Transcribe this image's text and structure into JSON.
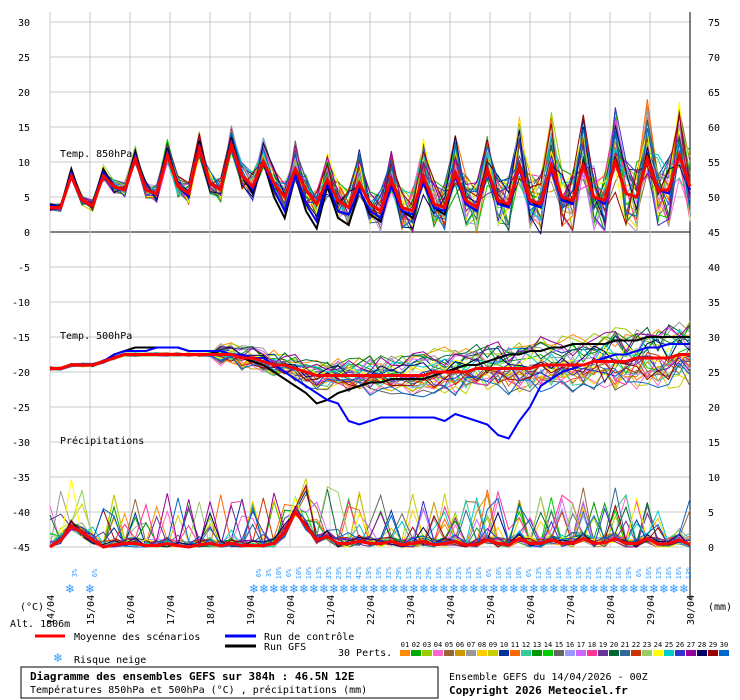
{
  "chart_data": {
    "type": "line",
    "title": "Diagramme des ensembles GEFS sur 384h : 46.5N 12E",
    "subtitle": "Températures 850hPa et 500hPa (°C) , précipitations (mm)",
    "run_label": "Ensemble GEFS du 14/04/2026 - 00Z",
    "copyright": "Copyright 2026 Meteociel.fr",
    "altitude": "Alt. 1806m",
    "left_axis": {
      "unit": "(°C)",
      "ticks": [
        30,
        25,
        20,
        15,
        10,
        5,
        0,
        -5,
        -10,
        -15,
        -20,
        -25,
        -30,
        -35,
        -40,
        -45
      ]
    },
    "right_axis": {
      "unit": "(mm)",
      "ticks_temp500": [
        75,
        70,
        65,
        60,
        55,
        50,
        45,
        40,
        35,
        30,
        25,
        20,
        15,
        10,
        5,
        0
      ]
    },
    "x_dates": [
      "14/04",
      "15/04",
      "16/04",
      "17/04",
      "18/04",
      "19/04",
      "20/04",
      "21/04",
      "22/04",
      "23/04",
      "24/04",
      "25/04",
      "26/04",
      "27/04",
      "28/04",
      "29/04",
      "30/04"
    ],
    "panel_labels": {
      "t850": "Temp. 850hPa",
      "t500": "Temp. 500hPa",
      "precip": "Précipitations"
    },
    "t850_mean": [
      3.5,
      3.5,
      8,
      4.5,
      3.8,
      8,
      6.5,
      6,
      10.5,
      6,
      5.5,
      11,
      6.5,
      5.5,
      12,
      7,
      6,
      12.5,
      8,
      6.5,
      10,
      7,
      5,
      9,
      6,
      4,
      7.5,
      4.5,
      3.5,
      7,
      4,
      3,
      7.5,
      3.5,
      3,
      8,
      4,
      3.5,
      8.5,
      4.5,
      3.5,
      9,
      4.5,
      4,
      9.5,
      4.5,
      4,
      9.5,
      5,
      4.5,
      9.5,
      5,
      4.5,
      10,
      5.5,
      5,
      10.5,
      6,
      6,
      11,
      6.5
    ],
    "t850_control": [
      3.8,
      3.5,
      8.5,
      4.5,
      4,
      8.5,
      6.5,
      6,
      11,
      6,
      5.5,
      11.5,
      6.5,
      5,
      12.5,
      7,
      6,
      13,
      8,
      6,
      10,
      6,
      3,
      8,
      4,
      1.5,
      7,
      3,
      2.5,
      6,
      3,
      2,
      6.5,
      3,
      2.5,
      7,
      3.5,
      3,
      8,
      4,
      3,
      8.5,
      4,
      3.5,
      9,
      4,
      3.5,
      9,
      4.5,
      4,
      9.5,
      5,
      4,
      10,
      5.5,
      5,
      10.5,
      6,
      5.5,
      11,
      6
    ],
    "t850_gfs": [
      4,
      3.5,
      9,
      4.5,
      4,
      9,
      6.5,
      6,
      11.5,
      6,
      5.5,
      12,
      6.5,
      5,
      13,
      7,
      6,
      13.5,
      8,
      5.5,
      10,
      5,
      2,
      8,
      3,
      0.5,
      6.5,
      2,
      1,
      6,
      2.5,
      1.5,
      7,
      3,
      2,
      7.5,
      3.5,
      2.5,
      8,
      4,
      3,
      9,
      4.5,
      3.5,
      9.5,
      4.5,
      3.5,
      9.5,
      5,
      4,
      10,
      5,
      4.5,
      10.5,
      5.5,
      5,
      11,
      6,
      5.5,
      11,
      6
    ],
    "t500_mean": [
      -19.5,
      -19.5,
      -19,
      -19,
      -19,
      -18.5,
      -18,
      -17.5,
      -17.5,
      -17.5,
      -17.5,
      -17.5,
      -17.5,
      -17.5,
      -17.5,
      -17.5,
      -17.5,
      -17.5,
      -18,
      -18,
      -18.5,
      -19,
      -19,
      -19.5,
      -20,
      -20.5,
      -20.5,
      -20.5,
      -20.5,
      -20.5,
      -20.5,
      -20.5,
      -20.5,
      -20.5,
      -20.5,
      -20.5,
      -20,
      -20,
      -20,
      -20,
      -19.5,
      -19.5,
      -19.5,
      -19.5,
      -19.5,
      -19.5,
      -19,
      -19,
      -19,
      -19,
      -19,
      -18.5,
      -18.5,
      -18.5,
      -18.5,
      -18,
      -18,
      -18,
      -18,
      -17.5,
      -17.5
    ],
    "t500_control": [
      -19.5,
      -19.5,
      -19,
      -19,
      -19,
      -18.5,
      -17.5,
      -17,
      -17,
      -17,
      -16.5,
      -16.5,
      -16.5,
      -17,
      -17,
      -17,
      -17,
      -17.5,
      -17.5,
      -18,
      -18,
      -19,
      -20,
      -21,
      -22,
      -23,
      -24,
      -24.5,
      -27,
      -27.5,
      -27,
      -26.5,
      -26.5,
      -26.5,
      -26.5,
      -26.5,
      -26.5,
      -27,
      -26,
      -26.5,
      -27,
      -27.5,
      -29,
      -29.5,
      -27,
      -25,
      -22,
      -21,
      -20,
      -19.5,
      -19,
      -18.5,
      -18,
      -17.5,
      -17.5,
      -17,
      -16.5,
      -16.5,
      -16,
      -16,
      -16
    ],
    "t500_gfs": [
      -19.5,
      -19.5,
      -19,
      -19,
      -19,
      -18.5,
      -17.5,
      -17,
      -16.5,
      -16.5,
      -16.5,
      -16.5,
      -16.5,
      -17,
      -17,
      -17,
      -17.5,
      -17.5,
      -18,
      -18.5,
      -19,
      -20,
      -21,
      -22,
      -23,
      -24.5,
      -24,
      -23,
      -22.5,
      -22,
      -21.5,
      -21.5,
      -21,
      -21,
      -21,
      -21,
      -20.5,
      -20,
      -19.5,
      -19,
      -19,
      -18.5,
      -18,
      -17.5,
      -17.5,
      -17,
      -17,
      -16.5,
      -16.5,
      -16,
      -16,
      -16,
      -16,
      -15.5,
      -15.5,
      -15.5,
      -15,
      -15,
      -15,
      -15,
      -15
    ],
    "precip_mean_mm": [
      0,
      1,
      3,
      2,
      1,
      0,
      0.3,
      0.5,
      0.5,
      0.2,
      0.2,
      0.5,
      0.2,
      0,
      0.3,
      0.5,
      0.2,
      0.5,
      0.2,
      0.2,
      0.2,
      0.5,
      2,
      5,
      3,
      1,
      1.5,
      0.5,
      0.5,
      0.8,
      0.5,
      0.5,
      0.8,
      0.3,
      0.5,
      0.8,
      0.3,
      0.5,
      0.8,
      0.3,
      0.3,
      1,
      0.5,
      0.3,
      1.2,
      0.5,
      0.5,
      1,
      0.5,
      0.6,
      1.2,
      0.5,
      0.6,
      1.2,
      0.5,
      0.5,
      1.2,
      0.4,
      0.5,
      1,
      0.3
    ],
    "snow_risk": [
      {
        "day": 0.5,
        "pct": "3%"
      },
      {
        "day": 1.0,
        "pct": "6%"
      },
      {
        "day": 5.1,
        "pct": "6%"
      },
      {
        "day": 5.35,
        "pct": "3%"
      },
      {
        "day": 5.6,
        "pct": "10%"
      },
      {
        "day": 5.85,
        "pct": "6%"
      },
      {
        "day": 6.1,
        "pct": "10%"
      },
      {
        "day": 6.35,
        "pct": "10%"
      },
      {
        "day": 6.6,
        "pct": "13%"
      },
      {
        "day": 6.85,
        "pct": "35%"
      },
      {
        "day": 7.1,
        "pct": "29%"
      },
      {
        "day": 7.35,
        "pct": "32%"
      },
      {
        "day": 7.6,
        "pct": "42%"
      },
      {
        "day": 7.85,
        "pct": "19%"
      },
      {
        "day": 8.1,
        "pct": "19%"
      },
      {
        "day": 8.35,
        "pct": "32%"
      },
      {
        "day": 8.6,
        "pct": "29%"
      },
      {
        "day": 8.85,
        "pct": "13%"
      },
      {
        "day": 9.1,
        "pct": "29%"
      },
      {
        "day": 9.35,
        "pct": "29%"
      },
      {
        "day": 9.6,
        "pct": "16%"
      },
      {
        "day": 9.85,
        "pct": "16%"
      },
      {
        "day": 10.1,
        "pct": "23%"
      },
      {
        "day": 10.35,
        "pct": "13%"
      },
      {
        "day": 10.6,
        "pct": "16%"
      },
      {
        "day": 10.85,
        "pct": "6%"
      },
      {
        "day": 11.1,
        "pct": "10%"
      },
      {
        "day": 11.35,
        "pct": "16%"
      },
      {
        "day": 11.6,
        "pct": "10%"
      },
      {
        "day": 11.85,
        "pct": "6%"
      },
      {
        "day": 12.1,
        "pct": "13%"
      },
      {
        "day": 12.35,
        "pct": "10%"
      },
      {
        "day": 12.6,
        "pct": "16%"
      },
      {
        "day": 12.85,
        "pct": "10%"
      },
      {
        "day": 13.1,
        "pct": "19%"
      },
      {
        "day": 13.35,
        "pct": "23%"
      },
      {
        "day": 13.6,
        "pct": "13%"
      },
      {
        "day": 13.85,
        "pct": "23%"
      },
      {
        "day": 14.1,
        "pct": "16%"
      },
      {
        "day": 14.35,
        "pct": "19%"
      },
      {
        "day": 14.6,
        "pct": "6%"
      },
      {
        "day": 14.85,
        "pct": "16%"
      },
      {
        "day": 15.1,
        "pct": "13%"
      },
      {
        "day": 15.35,
        "pct": "16%"
      },
      {
        "day": 15.6,
        "pct": "16%"
      },
      {
        "day": 15.85,
        "pct": "13%"
      }
    ],
    "legend": {
      "mean": "Moyenne des scénarios",
      "control": "Run de contrôle",
      "gfs": "Run GFS",
      "snow": "Risque neige",
      "perts_label": "30 Perts.",
      "perts": [
        "01",
        "02",
        "03",
        "04",
        "05",
        "06",
        "07",
        "08",
        "09",
        "10",
        "11",
        "12",
        "13",
        "14",
        "15",
        "16",
        "17",
        "18",
        "19",
        "20",
        "21",
        "22",
        "23",
        "24",
        "25",
        "26",
        "27",
        "28",
        "29",
        "30"
      ]
    },
    "colors": {
      "mean": "#ff0000",
      "control": "#0000ff",
      "gfs": "#000000",
      "grid": "#c8c8c8",
      "zero": "#808080",
      "snow": "#3399ff",
      "perts": [
        "#ff8c00",
        "#00aa00",
        "#99cc00",
        "#ff66cc",
        "#996633",
        "#cc9900",
        "#999999",
        "#ffcc00",
        "#cccc00",
        "#003399",
        "#ff6600",
        "#33cc99",
        "#009900",
        "#00cc00",
        "#666666",
        "#9999ff",
        "#cc66ff",
        "#ff3399",
        "#663399",
        "#006633",
        "#336699",
        "#cc3300",
        "#99cc66",
        "#ffff00",
        "#00cccc",
        "#3333cc",
        "#990099",
        "#000066",
        "#990000",
        "#0066cc"
      ]
    }
  }
}
